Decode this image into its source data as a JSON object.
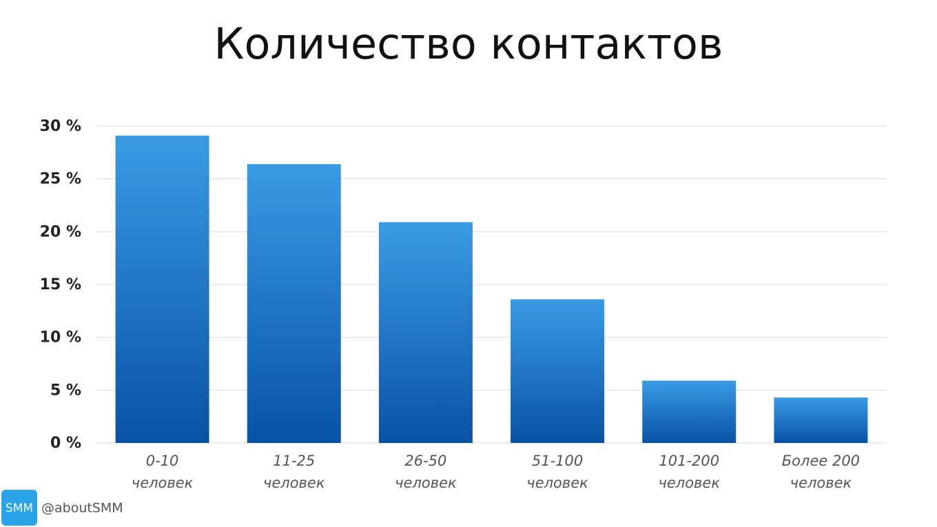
{
  "chart_data": {
    "type": "bar",
    "title": "Количество контактов",
    "categories": [
      [
        "0-10",
        "человек"
      ],
      [
        "11-25",
        "человек"
      ],
      [
        "26-50",
        "человек"
      ],
      [
        "51-100",
        "человек"
      ],
      [
        "101-200",
        "человек"
      ],
      [
        "Более 200",
        "человек"
      ]
    ],
    "values": [
      29.1,
      26.4,
      20.9,
      13.6,
      5.9,
      4.3
    ],
    "gradient": [
      "#3a9be5",
      "#0852a5"
    ],
    "ylim": [
      0,
      30
    ],
    "yticks": [
      {
        "value": 0,
        "label": "0 %"
      },
      {
        "value": 5,
        "label": "5 %"
      },
      {
        "value": 10,
        "label": "10 %"
      },
      {
        "value": 15,
        "label": "15 %"
      },
      {
        "value": 20,
        "label": "20 %"
      },
      {
        "value": 25,
        "label": "25 %"
      },
      {
        "value": 30,
        "label": "30 %"
      }
    ],
    "grid": true
  },
  "footer": {
    "badge": "SMM",
    "handle": "@aboutSMM"
  }
}
